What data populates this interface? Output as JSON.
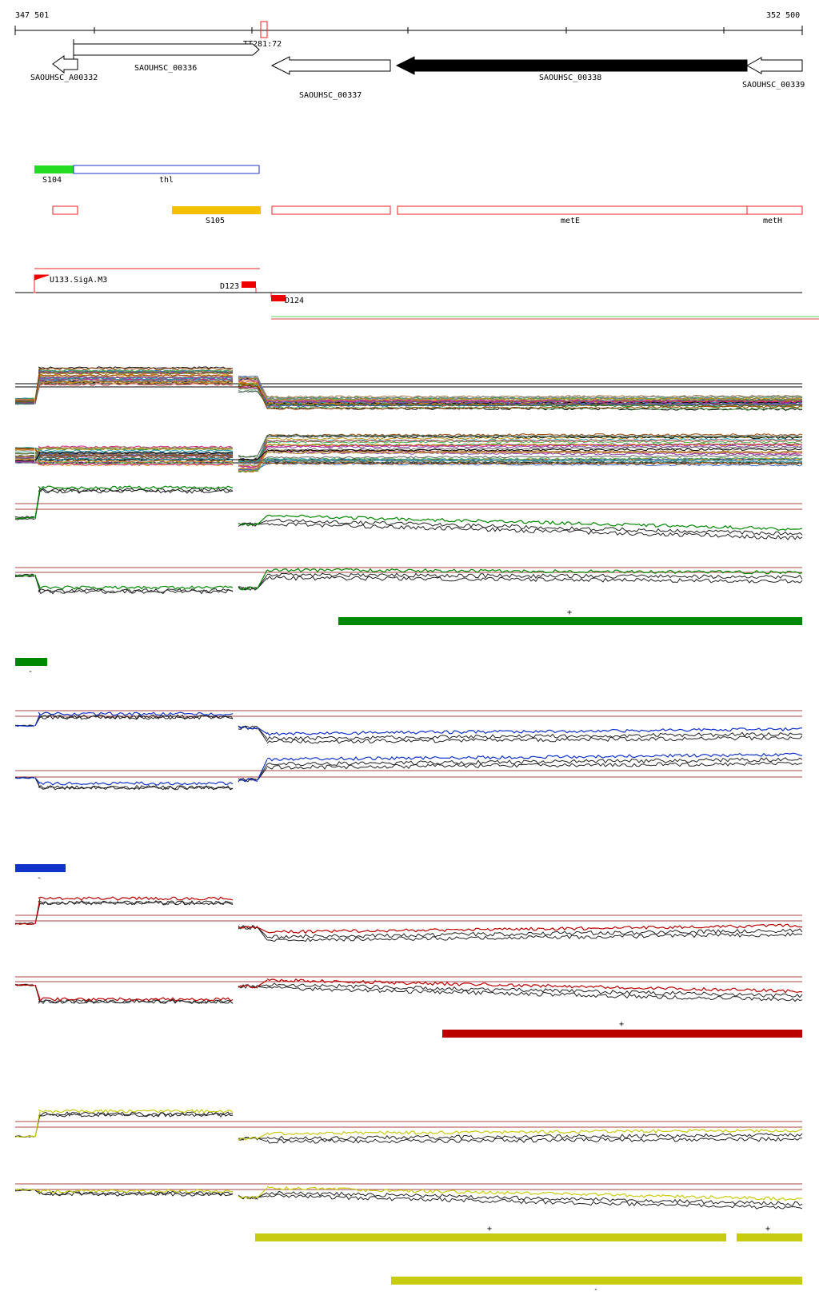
{
  "ruler": {
    "start_label": "347 501",
    "end_label": "352 500",
    "marker_label": "TT281:72"
  },
  "genes": [
    {
      "label": "SAOUHSC_A00332",
      "strand": "-",
      "fill": "#ffffff"
    },
    {
      "label": "SAOUHSC_00336",
      "strand": "+",
      "fill": "#ffffff"
    },
    {
      "label": "SAOUHSC_00337",
      "strand": "-",
      "fill": "#ffffff"
    },
    {
      "label": "SAOUHSC_00338",
      "strand": "-",
      "fill": "#000000"
    },
    {
      "label": "SAOUHSC_00339",
      "strand": "-",
      "fill": "#ffffff"
    }
  ],
  "features_plus": [
    {
      "label": "S104",
      "color": "#22dd22",
      "filled": true
    },
    {
      "label": "thl",
      "color": "#2233cc",
      "filled": false
    }
  ],
  "features_minus": [
    {
      "label": "",
      "color": "#ee2222",
      "filled": false
    },
    {
      "label": "S105",
      "color": "#f5c000",
      "filled": true
    },
    {
      "label": "",
      "color": "#ee2222",
      "filled": false
    },
    {
      "label": "metE",
      "color": "#ee2222",
      "filled": false
    },
    {
      "label": "metH",
      "color": "#ee2222",
      "filled": false
    }
  ],
  "promoters": [
    {
      "label": "U133.SigA.M3",
      "color": "#ee0000"
    },
    {
      "label": "D123",
      "color": "#ee0000"
    },
    {
      "label": "D124",
      "color": "#ee0000"
    }
  ],
  "expression_panels": [
    {
      "color": "#008800",
      "segments": [
        {
          "strand": "+",
          "label": "+"
        },
        {
          "strand": "-",
          "label": "-"
        }
      ]
    },
    {
      "color": "#1133cc",
      "segments": [
        {
          "strand": "-",
          "label": "-"
        }
      ]
    },
    {
      "color": "#bb0000",
      "segments": [
        {
          "strand": "+",
          "label": "+"
        }
      ]
    },
    {
      "color": "#c8cc10",
      "segments": [
        {
          "strand": "+",
          "label": "+"
        },
        {
          "strand": "+",
          "label": "+"
        },
        {
          "strand": "-",
          "label": "-"
        }
      ]
    }
  ],
  "multi_color_palette": [
    "#000000",
    "#cc4444",
    "#228833",
    "#8844aa",
    "#dd8800",
    "#3366cc",
    "#aa7744",
    "#55aa55",
    "#cc2288",
    "#778899",
    "#bb9922",
    "#446644",
    "#994400",
    "#2299aa",
    "#666666"
  ]
}
